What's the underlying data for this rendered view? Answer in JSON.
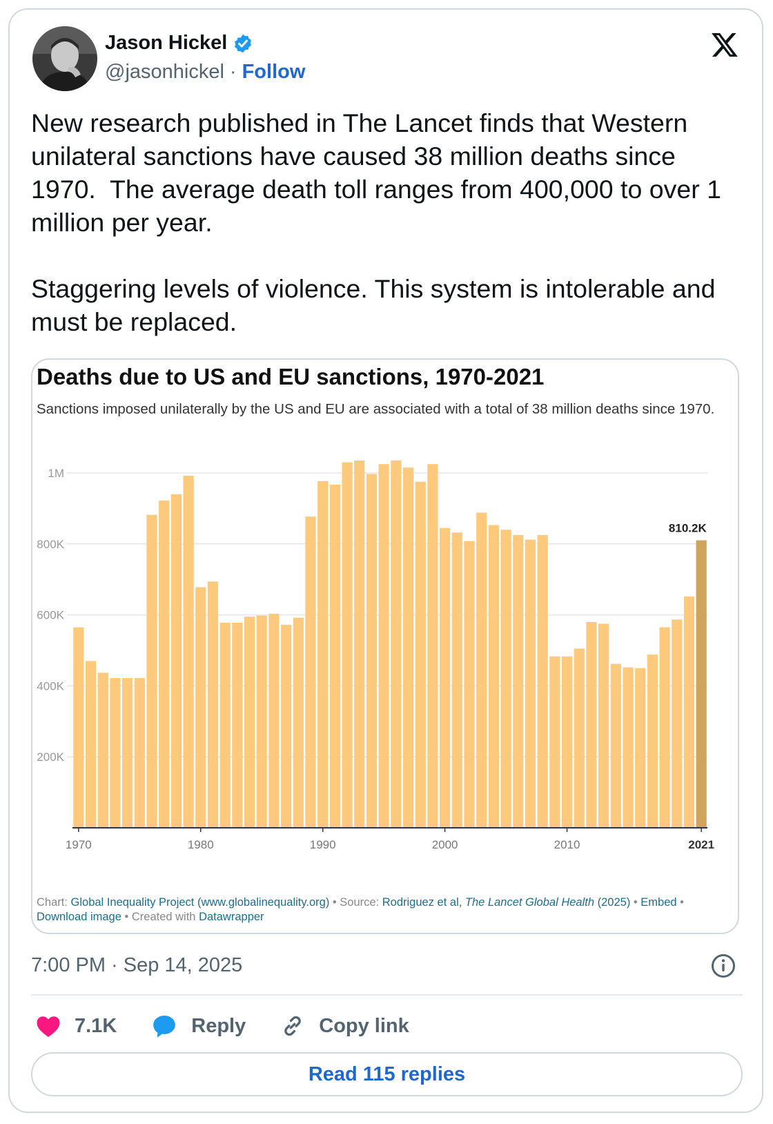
{
  "author": {
    "name": "Jason Hickel",
    "handle": "@jasonhickel",
    "separator": "·",
    "follow_label": "Follow"
  },
  "tweet": {
    "text": "New research published in The Lancet finds that Western unilateral sanctions have caused 38 million deaths since 1970.  The average death toll ranges from 400,000 to over 1 million per year.\n\nStaggering levels of violence. This system is intolerable and must be replaced."
  },
  "chart_data": {
    "type": "bar",
    "title": "Deaths due to US and EU sanctions, 1970-2021",
    "subtitle": "Sanctions imposed unilaterally by the US and EU are associated with a total of 38 million deaths since 1970.",
    "x": [
      1970,
      1971,
      1972,
      1973,
      1974,
      1975,
      1976,
      1977,
      1978,
      1979,
      1980,
      1981,
      1982,
      1983,
      1984,
      1985,
      1986,
      1987,
      1988,
      1989,
      1990,
      1991,
      1992,
      1993,
      1994,
      1995,
      1996,
      1997,
      1998,
      1999,
      2000,
      2001,
      2002,
      2003,
      2004,
      2005,
      2006,
      2007,
      2008,
      2009,
      2010,
      2011,
      2012,
      2013,
      2014,
      2015,
      2016,
      2017,
      2018,
      2019,
      2020,
      2021
    ],
    "values": [
      565000,
      470000,
      437000,
      422000,
      422000,
      422000,
      882000,
      922000,
      940000,
      992000,
      678000,
      694000,
      578000,
      578000,
      595000,
      598000,
      603000,
      572000,
      592000,
      877000,
      977000,
      967000,
      1030000,
      1035000,
      997000,
      1025000,
      1035000,
      1015000,
      975000,
      1025000,
      845000,
      832000,
      808000,
      888000,
      853000,
      840000,
      825000,
      812000,
      825000,
      483000,
      483000,
      505000,
      580000,
      575000,
      462000,
      452000,
      450000,
      488000,
      565000,
      587000,
      652000,
      810200
    ],
    "highlight_label": "810.2K",
    "y_ticks": [
      200000,
      400000,
      600000,
      800000,
      1000000
    ],
    "y_tick_labels": [
      "200K",
      "400K",
      "600K",
      "800K",
      "1M"
    ],
    "x_tick_labels": [
      "1970",
      "1980",
      "1990",
      "2000",
      "2010",
      "2021"
    ],
    "x_tick_years": [
      1970,
      1980,
      1990,
      2000,
      2010,
      2021
    ],
    "ylim": [
      0,
      1000000
    ],
    "colors": {
      "bar": "#fdc97d",
      "highlight": "#d0a55a",
      "grid": "#e6e6e6",
      "axis": "#333333"
    }
  },
  "chart_footer": {
    "chart_prefix": "Chart: ",
    "chart_link": "Global Inequality Project (www.globalinequality.org)",
    "source_prefix": " • Source: ",
    "source_link": "Rodriguez et al, ",
    "source_journal": "The Lancet Global Health",
    "source_year": " (2025)",
    "sep1": " • ",
    "embed": "Embed",
    "sep2": " • ",
    "download": "Download image",
    "created_prefix": " • Created with ",
    "created_link": "Datawrapper"
  },
  "meta": {
    "timestamp": "7:00 PM · Sep 14, 2025"
  },
  "actions": {
    "likes": "7.1K",
    "reply_label": "Reply",
    "copy_label": "Copy link",
    "read_replies_label": "Read 115 replies"
  }
}
